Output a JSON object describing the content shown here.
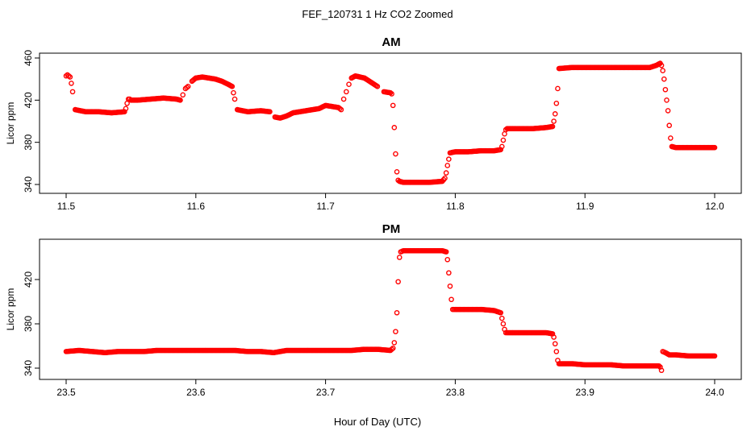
{
  "figure": {
    "title": "FEF_120731  1 Hz CO2 Zoomed",
    "xlabel": "Hour of Day (UTC)"
  },
  "colors": {
    "points": "#ff0000",
    "axis": "#000000",
    "background": "#ffffff"
  },
  "chart_data": [
    {
      "type": "scatter",
      "title": "AM",
      "xlabel": "",
      "ylabel": "Licor ppm",
      "xlim": [
        11.5,
        12.0
      ],
      "ylim": [
        340,
        460
      ],
      "xticks": [
        "11.5",
        "11.6",
        "11.7",
        "11.8",
        "11.9",
        "12.0"
      ],
      "yticks": [
        "340",
        "380",
        "420",
        "460"
      ],
      "grid": false,
      "marker": "open-circle",
      "series": [
        {
          "x": [
            11.5,
            11.501,
            11.502,
            11.503,
            11.504,
            11.505,
            11.507,
            11.515,
            11.525,
            11.535,
            11.545,
            11.546,
            11.547,
            11.548,
            11.549,
            11.55,
            11.555,
            11.565,
            11.575,
            11.585,
            11.588,
            11.59,
            11.592,
            11.594,
            11.597,
            11.6,
            11.605,
            11.61,
            11.615,
            11.62,
            11.625,
            11.628,
            11.629,
            11.63,
            11.632,
            11.64,
            11.65,
            11.657,
            11.661,
            11.665,
            11.67,
            11.675,
            11.685,
            11.695,
            11.7,
            11.705,
            11.71,
            11.712,
            11.714,
            11.716,
            11.718,
            11.72,
            11.723,
            11.73,
            11.735,
            11.74,
            11.745,
            11.75,
            11.751,
            11.752,
            11.753,
            11.754,
            11.755,
            11.756,
            11.757,
            11.76,
            11.77,
            11.78,
            11.79,
            11.792,
            11.793,
            11.794,
            11.795,
            11.796,
            11.8,
            11.81,
            11.82,
            11.83,
            11.835,
            11.836,
            11.837,
            11.838,
            11.839,
            11.84,
            11.85,
            11.86,
            11.87,
            11.875,
            11.876,
            11.877,
            11.878,
            11.879,
            11.88,
            11.89,
            11.9,
            11.91,
            11.92,
            11.93,
            11.94,
            11.95,
            11.955,
            11.958,
            11.959,
            11.96,
            11.961,
            11.962,
            11.963,
            11.964,
            11.965,
            11.966,
            11.967,
            11.97,
            11.98,
            11.99,
            12.0
          ],
          "y": [
            443,
            444,
            443,
            442,
            436,
            428,
            411,
            409,
            409,
            408,
            409,
            412,
            417,
            421,
            421,
            420,
            420,
            421,
            422,
            421,
            420,
            425,
            431,
            433,
            438,
            441,
            442,
            441,
            440,
            438,
            435,
            433,
            427,
            421,
            411,
            409,
            410,
            409,
            404,
            403,
            405,
            408,
            410,
            412,
            415,
            414,
            413,
            411,
            421,
            428,
            435,
            441,
            443,
            441,
            437,
            433,
            428,
            427,
            426,
            415,
            394,
            369,
            352,
            344,
            343,
            342,
            342,
            342,
            343,
            346,
            351,
            358,
            364,
            370,
            371,
            371,
            372,
            372,
            373,
            376,
            382,
            388,
            392,
            393,
            393,
            393,
            394,
            395,
            400,
            407,
            417,
            431,
            450,
            451,
            451,
            451,
            451,
            451,
            451,
            451,
            453,
            455,
            453,
            448,
            440,
            430,
            420,
            410,
            396,
            384,
            376,
            375,
            375,
            375,
            375
          ]
        }
      ]
    },
    {
      "type": "scatter",
      "title": "PM",
      "xlabel": "",
      "ylabel": "Licor ppm",
      "xlim": [
        23.5,
        24.0
      ],
      "ylim": [
        340,
        450
      ],
      "xticks": [
        "23.5",
        "23.6",
        "23.7",
        "23.8",
        "23.9",
        "24.0"
      ],
      "yticks": [
        "340",
        "380",
        "420"
      ],
      "grid": false,
      "marker": "open-circle",
      "series": [
        {
          "x": [
            23.5,
            23.51,
            23.52,
            23.53,
            23.54,
            23.55,
            23.56,
            23.57,
            23.58,
            23.59,
            23.6,
            23.61,
            23.62,
            23.63,
            23.64,
            23.65,
            23.66,
            23.67,
            23.68,
            23.69,
            23.7,
            23.71,
            23.72,
            23.73,
            23.74,
            23.75,
            23.752,
            23.753,
            23.754,
            23.755,
            23.756,
            23.757,
            23.758,
            23.76,
            23.77,
            23.78,
            23.79,
            23.793,
            23.794,
            23.795,
            23.796,
            23.797,
            23.798,
            23.8,
            23.81,
            23.82,
            23.83,
            23.835,
            23.836,
            23.837,
            23.838,
            23.839,
            23.84,
            23.85,
            23.86,
            23.87,
            23.875,
            23.876,
            23.877,
            23.878,
            23.879,
            23.88,
            23.89,
            23.9,
            23.91,
            23.92,
            23.93,
            23.94,
            23.95,
            23.957,
            23.958,
            23.959,
            23.96,
            23.962,
            23.965,
            23.97,
            23.98,
            23.99,
            24.0
          ],
          "y": [
            355,
            356,
            355,
            354,
            355,
            355,
            355,
            356,
            356,
            356,
            356,
            356,
            356,
            356,
            355,
            355,
            354,
            356,
            356,
            356,
            356,
            356,
            356,
            357,
            357,
            356,
            358,
            363,
            373,
            390,
            418,
            440,
            445,
            446,
            446,
            446,
            446,
            445,
            438,
            426,
            414,
            402,
            393,
            393,
            393,
            393,
            392,
            390,
            385,
            380,
            375,
            372,
            372,
            372,
            372,
            372,
            371,
            368,
            362,
            355,
            347,
            344,
            344,
            343,
            343,
            343,
            342,
            342,
            342,
            342,
            341,
            338,
            355,
            354,
            352,
            352,
            351,
            351,
            351
          ]
        }
      ]
    }
  ]
}
